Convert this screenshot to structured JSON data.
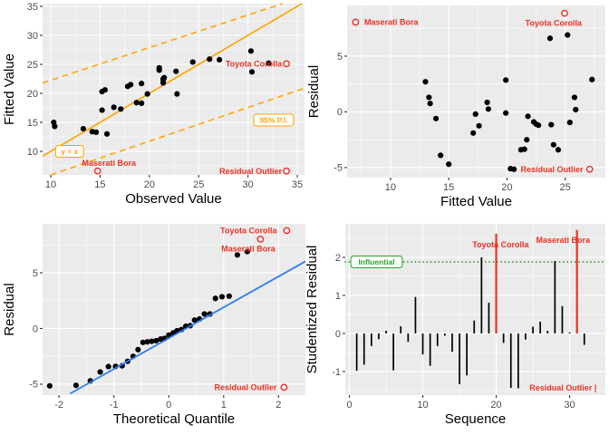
{
  "figure": {
    "description": "2x2 grid of regression diagnostic plots (ggplot style)",
    "background": "#FFFFFF"
  },
  "palette": {
    "panel_bg": "#EBEBEB",
    "grid": "#FFFFFF",
    "tick": "#333333",
    "tick_label": "#4D4D4D",
    "title": "#000000",
    "point": "#000000",
    "red": "#EE3124",
    "orange": "#FFA500",
    "blue": "#2E7DF7",
    "green": "#2CA02C"
  },
  "chart_data": [
    {
      "id": "fitted-vs-observed",
      "type": "scatter",
      "xlabel": "Observed Value",
      "ylabel": "Fitted Value",
      "xlim": [
        9.17,
        35.73
      ],
      "ylim": [
        5.94,
        35.47
      ],
      "xticks": [
        10,
        15,
        20,
        25,
        30,
        35
      ],
      "yticks": [
        10,
        15,
        20,
        25,
        30,
        35
      ],
      "xminor": [
        12.5,
        17.5,
        22.5,
        27.5,
        32.5
      ],
      "yminor": [
        7.5,
        12.5,
        17.5,
        22.5,
        27.5,
        32.5
      ],
      "lines": [
        {
          "name": "identity-line",
          "color": "orange",
          "dash": "solid",
          "width": 1.7,
          "from": [
            9.17,
            9.17
          ],
          "to": [
            35.47,
            35.47
          ]
        },
        {
          "name": "upper-prediction-interval-line",
          "color": "orange",
          "dash": "dashed",
          "width": 1.6,
          "from": [
            9.17,
            21.8
          ],
          "to": [
            33.5,
            35.47
          ]
        },
        {
          "name": "lower-prediction-interval-line",
          "color": "orange",
          "dash": "dashed",
          "width": 1.6,
          "from": [
            10.0,
            5.94
          ],
          "to": [
            35.73,
            20.9
          ]
        }
      ],
      "points": [
        [
          15.7,
          13.0
        ],
        [
          14.6,
          13.3
        ],
        [
          14.2,
          13.4
        ],
        [
          13.3,
          13.9
        ],
        [
          10.4,
          14.3
        ],
        [
          10.3,
          15.0
        ],
        [
          15.2,
          17.1
        ],
        [
          17.1,
          17.3
        ],
        [
          16.4,
          17.6
        ],
        [
          19.2,
          18.3
        ],
        [
          18.7,
          18.4
        ],
        [
          19.8,
          19.9
        ],
        [
          22.8,
          19.9
        ],
        [
          15.2,
          20.3
        ],
        [
          15.5,
          20.6
        ],
        [
          17.8,
          21.2
        ],
        [
          18.1,
          21.5
        ],
        [
          19.2,
          21.7
        ],
        [
          21.4,
          21.8
        ],
        [
          21.4,
          22.3
        ],
        [
          21.4,
          22.5
        ],
        [
          21.5,
          22.7
        ],
        [
          30.4,
          23.7
        ],
        [
          22.7,
          23.8
        ],
        [
          21.0,
          24.0
        ],
        [
          21.0,
          24.4
        ],
        [
          32.1,
          25.2
        ],
        [
          24.4,
          25.4
        ],
        [
          27.1,
          25.8
        ],
        [
          26.1,
          25.9
        ],
        [
          30.3,
          27.3
        ]
      ],
      "outliers": [
        {
          "label": "Toyota Corolla",
          "circle": [
            33.9,
            25.1
          ],
          "text": [
            33.45,
            25.1
          ],
          "anchor": "end"
        },
        {
          "label": "Maserati Bora",
          "circle": [
            14.75,
            6.6
          ],
          "text": [
            15.9,
            8.0
          ],
          "anchor": "middle"
        },
        {
          "label": "Residual Outlier",
          "circle": [
            33.9,
            6.6
          ],
          "text": [
            33.45,
            6.6
          ],
          "anchor": "end"
        }
      ],
      "boxed_labels": [
        {
          "text": "y = x",
          "x": 11.9,
          "y": 10.0,
          "color": "orange"
        },
        {
          "text": "95% P.I.",
          "x": 32.6,
          "y": 15.4,
          "color": "orange"
        }
      ]
    },
    {
      "id": "residual-vs-fitted",
      "type": "scatter",
      "xlabel": "Fitted Value",
      "ylabel": "Residual",
      "xlim": [
        6.27,
        28.45
      ],
      "ylim": [
        -5.9,
        9.55
      ],
      "xticks": [
        10,
        15,
        20,
        25
      ],
      "yticks": [
        -5,
        0,
        5
      ],
      "xminor": [
        7.5,
        12.5,
        17.5,
        22.5,
        27.5
      ],
      "yminor": [
        -2.5,
        2.5,
        7.5
      ],
      "lines": [],
      "points": [
        [
          13.0,
          2.7
        ],
        [
          13.3,
          1.3
        ],
        [
          13.4,
          0.75
        ],
        [
          13.9,
          -0.6
        ],
        [
          14.3,
          -3.9
        ],
        [
          15.0,
          -4.7
        ],
        [
          17.1,
          -1.9
        ],
        [
          17.3,
          -0.2
        ],
        [
          17.6,
          -1.25
        ],
        [
          18.3,
          0.85
        ],
        [
          18.4,
          0.25
        ],
        [
          19.9,
          -0.1
        ],
        [
          19.9,
          2.85
        ],
        [
          20.3,
          -5.1
        ],
        [
          20.6,
          -5.15
        ],
        [
          21.2,
          -3.4
        ],
        [
          21.5,
          -3.35
        ],
        [
          21.7,
          -2.5
        ],
        [
          21.8,
          -0.4
        ],
        [
          22.3,
          -0.9
        ],
        [
          22.5,
          -1.1
        ],
        [
          22.7,
          -1.2
        ],
        [
          23.7,
          6.6
        ],
        [
          23.8,
          -1.15
        ],
        [
          24.0,
          -2.95
        ],
        [
          24.4,
          -3.4
        ],
        [
          25.2,
          6.9
        ],
        [
          25.4,
          -0.95
        ],
        [
          25.8,
          1.3
        ],
        [
          25.9,
          0.2
        ],
        [
          27.3,
          2.9
        ]
      ],
      "outliers": [
        {
          "label": "Maserati Bora",
          "circle": [
            7.0,
            8.05
          ],
          "text": [
            7.75,
            8.05
          ],
          "anchor": "start"
        },
        {
          "label": "Toyota Corolla",
          "circle": [
            24.95,
            8.85
          ],
          "text": [
            24.0,
            7.95
          ],
          "anchor": "middle"
        },
        {
          "label": "Residual Outlier",
          "circle": [
            27.1,
            -5.15
          ],
          "text": [
            26.55,
            -5.15
          ],
          "anchor": "end"
        }
      ],
      "boxed_labels": []
    },
    {
      "id": "qq-plot",
      "type": "scatter",
      "xlabel": "Theoretical Quantile",
      "ylabel": "Residual",
      "xlim": [
        -2.3,
        2.49
      ],
      "ylim": [
        -5.98,
        9.39
      ],
      "xticks": [
        -2,
        -1,
        0,
        1,
        2
      ],
      "yticks": [
        -5,
        0,
        5
      ],
      "xminor": [
        -1.5,
        -0.5,
        0.5,
        1.5
      ],
      "yminor": [
        -2.5,
        2.5,
        7.5
      ],
      "line_on_top": true,
      "lines": [
        {
          "name": "qq-reference-line",
          "color": "blue",
          "dash": "solid",
          "width": 1.8,
          "from": [
            -1.8,
            -5.85
          ],
          "to": [
            2.49,
            6.02
          ]
        }
      ],
      "points": [
        [
          -2.17,
          -5.15
        ],
        [
          -1.69,
          -5.1
        ],
        [
          -1.43,
          -4.7
        ],
        [
          -1.25,
          -3.9
        ],
        [
          -1.1,
          -3.42
        ],
        [
          -0.97,
          -3.4
        ],
        [
          -0.85,
          -3.35
        ],
        [
          -0.75,
          -2.95
        ],
        [
          -0.65,
          -2.5
        ],
        [
          -0.56,
          -1.9
        ],
        [
          -0.47,
          -1.25
        ],
        [
          -0.39,
          -1.2
        ],
        [
          -0.31,
          -1.15
        ],
        [
          -0.23,
          -1.1
        ],
        [
          -0.15,
          -0.95
        ],
        [
          -0.08,
          -0.9
        ],
        [
          0.0,
          -0.6
        ],
        [
          0.08,
          -0.4
        ],
        [
          0.15,
          -0.2
        ],
        [
          0.23,
          -0.1
        ],
        [
          0.31,
          0.2
        ],
        [
          0.39,
          0.25
        ],
        [
          0.47,
          0.75
        ],
        [
          0.56,
          0.85
        ],
        [
          0.65,
          1.3
        ],
        [
          0.75,
          1.3
        ],
        [
          0.85,
          2.7
        ],
        [
          0.97,
          2.85
        ],
        [
          1.1,
          2.9
        ],
        [
          1.25,
          6.6
        ],
        [
          1.43,
          6.9
        ]
      ],
      "outliers": [
        {
          "label": "Toyota Corolla",
          "circle": [
            2.15,
            8.78
          ],
          "text": [
            1.97,
            8.78
          ],
          "anchor": "end"
        },
        {
          "label": "Maserati Bora",
          "circle": [
            1.67,
            8.02
          ],
          "text": [
            1.45,
            7.15
          ],
          "anchor": "middle"
        },
        {
          "label": "Residual Outlier",
          "circle": [
            2.1,
            -5.28
          ],
          "text": [
            1.97,
            -5.28
          ],
          "anchor": "end"
        }
      ],
      "boxed_labels": []
    },
    {
      "id": "studentized-residual-vs-sequence",
      "type": "bar",
      "xlabel": "Sequence",
      "ylabel": "Studentized Residual",
      "xlim": [
        -0.56,
        34.87
      ],
      "ylim": [
        -1.62,
        2.88
      ],
      "xticks": [
        0,
        10,
        20,
        30
      ],
      "yticks": [
        -1,
        0,
        1,
        2
      ],
      "xminor": [
        5,
        15,
        25
      ],
      "yminor": [
        -1.5,
        -0.5,
        0.5,
        1.5,
        2.5
      ],
      "lines": [
        {
          "name": "influential-threshold-line",
          "color": "green",
          "dash": "dotted",
          "width": 1.8,
          "from": [
            -0.56,
            1.88
          ],
          "to": [
            34.87,
            1.88
          ]
        }
      ],
      "bars": {
        "sequence": [
          1,
          2,
          3,
          4,
          5,
          6,
          7,
          8,
          9,
          10,
          11,
          12,
          13,
          14,
          15,
          16,
          17,
          18,
          19,
          20,
          21,
          22,
          23,
          24,
          25,
          26,
          27,
          28,
          29,
          30,
          31,
          32
        ],
        "values": [
          -0.98,
          -0.82,
          -0.33,
          -0.15,
          0.07,
          -0.97,
          0.19,
          -0.22,
          0.96,
          -0.55,
          -0.85,
          -0.33,
          -0.06,
          -0.48,
          -1.33,
          -1.1,
          0.34,
          2.0,
          0.81,
          2.62,
          -0.25,
          -1.43,
          -1.44,
          -0.16,
          0.18,
          0.31,
          0.07,
          1.9,
          0.72,
          0.03,
          2.72,
          -0.3
        ],
        "red_sequences": [
          20,
          31
        ]
      },
      "outliers": [
        {
          "label": "Toyota Corolla",
          "text": [
            20.6,
            2.33
          ],
          "anchor": "middle"
        },
        {
          "label": "Maserati Bora",
          "text": [
            29.1,
            2.45
          ],
          "anchor": "middle"
        },
        {
          "label": "Residual Outlier |",
          "text": [
            29.1,
            -1.43
          ],
          "anchor": "middle"
        }
      ],
      "boxed_labels": [
        {
          "text": "Influential",
          "x": 3.7,
          "y": 1.88,
          "color": "green"
        }
      ]
    }
  ]
}
